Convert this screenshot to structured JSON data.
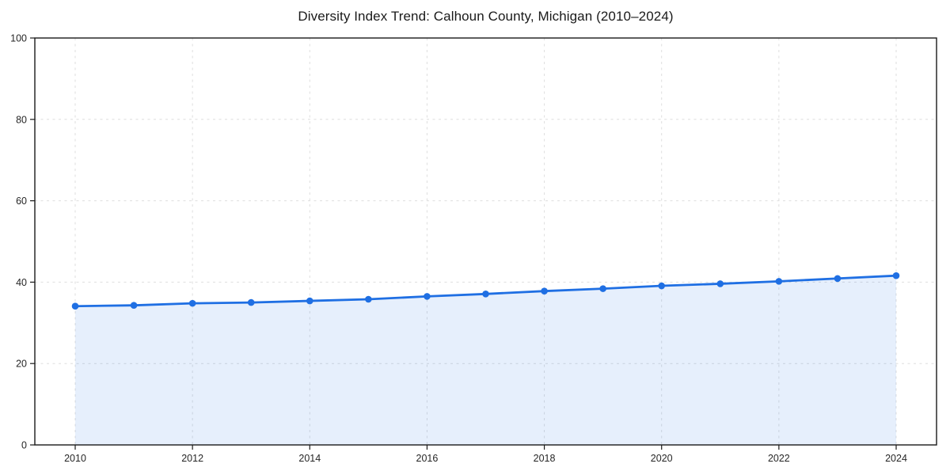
{
  "chart_data": {
    "type": "line",
    "title": "Diversity Index Trend: Calhoun County, Michigan (2010–2024)",
    "x": [
      2010,
      2011,
      2012,
      2013,
      2014,
      2015,
      2016,
      2017,
      2018,
      2019,
      2020,
      2021,
      2022,
      2023,
      2024
    ],
    "values": [
      34.1,
      34.3,
      34.8,
      35.0,
      35.4,
      35.8,
      36.5,
      37.1,
      37.8,
      38.4,
      39.1,
      39.6,
      40.2,
      40.9,
      41.6
    ],
    "xlabel": "",
    "ylabel": "",
    "ylim": [
      0,
      100
    ],
    "y_ticks": [
      0,
      20,
      40,
      60,
      80,
      100
    ],
    "x_ticks": [
      2010,
      2012,
      2014,
      2016,
      2018,
      2020,
      2022,
      2024
    ],
    "grid": true,
    "grid_style": "dashed",
    "legend": "none",
    "marker": "circle",
    "area_fill_to_zero": true,
    "colors": {
      "line": "#1f6fe3",
      "marker": "#1f6fe3",
      "fill": "#1f6fe3",
      "fill_opacity": 0.11,
      "grid": "#dedede",
      "spine": "#1a1a1a",
      "tick_label": "#262626",
      "background": "#ffffff"
    }
  }
}
